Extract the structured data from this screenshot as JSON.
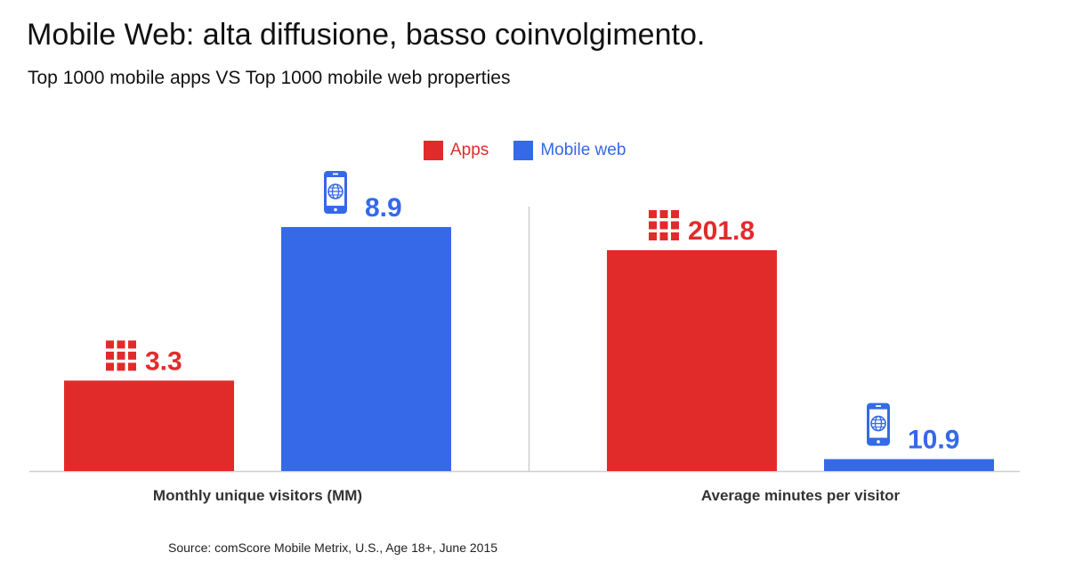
{
  "header": {
    "title": "Mobile Web: alta diffusione, basso coinvolgimento.",
    "subtitle": "Top 1000 mobile apps VS Top 1000 mobile web properties"
  },
  "legend": {
    "apps_label": "Apps",
    "web_label": "Mobile web"
  },
  "colors": {
    "apps": "#e12b2b",
    "web": "#3569e8"
  },
  "icons": {
    "apps": "app-grid-icon",
    "web": "mobile-globe-icon"
  },
  "chart_data": [
    {
      "type": "bar",
      "categories": [
        "Apps",
        "Mobile web"
      ],
      "values": [
        3.3,
        8.9
      ],
      "value_labels": [
        "3.3",
        "8.9"
      ],
      "xlabel": "Monthly unique visitors (MM)",
      "ylabel": "",
      "title": "",
      "ylim": [
        0,
        10
      ],
      "grid": false
    },
    {
      "type": "bar",
      "categories": [
        "Apps",
        "Mobile web"
      ],
      "values": [
        201.8,
        10.9
      ],
      "value_labels": [
        "201.8",
        "10.9"
      ],
      "xlabel": "Average minutes per visitor",
      "ylabel": "",
      "title": "",
      "ylim": [
        0,
        240
      ],
      "grid": false
    }
  ],
  "footer": {
    "source": "Source: comScore Mobile Metrix, U.S., Age 18+, June 2015"
  }
}
